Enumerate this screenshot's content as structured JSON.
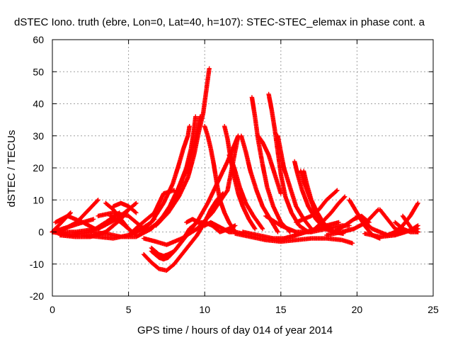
{
  "chart_data": {
    "type": "scatter",
    "title": "dSTEC Iono. truth (ebre, Lon=0, Lat=40, h=107): STEC-STEC_elemax in phase cont. a",
    "xlabel": "GPS time / hours of day 014 of year 2014",
    "ylabel": "dSTEC  / TECUs",
    "xlim": [
      0,
      25
    ],
    "ylim": [
      -20,
      60
    ],
    "xticks": [
      0,
      5,
      10,
      15,
      20,
      25
    ],
    "yticks": [
      -20,
      -10,
      0,
      10,
      20,
      30,
      40,
      50,
      60
    ],
    "grid": true,
    "marker": "+",
    "color": "#ff0000",
    "series": [
      {
        "x": [
          0.0,
          0.4,
          0.8,
          1.2
        ],
        "y": [
          0,
          2,
          4,
          6
        ]
      },
      {
        "x": [
          0.0,
          0.8,
          1.6,
          2.4,
          3.0
        ],
        "y": [
          0,
          1,
          3,
          7,
          10
        ]
      },
      {
        "x": [
          0.0,
          1.0,
          2.0,
          2.7
        ],
        "y": [
          0,
          1.5,
          3,
          4
        ]
      },
      {
        "x": [
          0.0,
          1.2,
          2.5,
          3.5,
          4.4
        ],
        "y": [
          0,
          -1,
          0,
          3,
          6
        ]
      },
      {
        "x": [
          0.2,
          1.0,
          2.0,
          2.8
        ],
        "y": [
          3,
          5,
          3,
          1
        ]
      },
      {
        "x": [
          0.5,
          1.5,
          2.5,
          3.5,
          4.5,
          5.0
        ],
        "y": [
          -1,
          -1.5,
          -1.5,
          0,
          4,
          7
        ]
      },
      {
        "x": [
          0.0,
          1.5,
          3.0,
          4.2,
          5.0,
          5.5
        ],
        "y": [
          0,
          0,
          1,
          4,
          7,
          9
        ]
      },
      {
        "x": [
          3.5,
          4.0,
          4.5,
          5.0,
          5.5
        ],
        "y": [
          9,
          7,
          4,
          1,
          -1
        ]
      },
      {
        "x": [
          3.0,
          4.0,
          5.0,
          6.0
        ],
        "y": [
          5,
          6,
          5,
          1
        ]
      },
      {
        "x": [
          2.5,
          3.5,
          4.5,
          5.5,
          6.5
        ],
        "y": [
          0,
          -0.5,
          -1.5,
          -1.5,
          1
        ]
      },
      {
        "x": [
          4.0,
          4.5,
          5.0,
          5.5
        ],
        "y": [
          8,
          9,
          8,
          6
        ]
      },
      {
        "x": [
          2.0,
          3.0,
          4.0,
          5.0,
          6.0,
          6.7
        ],
        "y": [
          -1,
          -1.5,
          -2,
          -1,
          1,
          4
        ]
      },
      {
        "x": [
          3.8,
          4.5,
          5.0
        ],
        "y": [
          5,
          3,
          1
        ]
      },
      {
        "x": [
          5.0,
          5.7,
          6.2,
          6.7,
          7.0,
          7.3,
          8.0
        ],
        "y": [
          -1,
          2,
          4,
          6,
          9,
          12,
          13
        ]
      },
      {
        "x": [
          5.5,
          6.5,
          7.3,
          7.9,
          8.3,
          8.6,
          8.9,
          9.0
        ],
        "y": [
          0,
          3,
          9,
          15,
          21,
          26,
          30,
          33
        ]
      },
      {
        "x": [
          6.0,
          7.0,
          7.7,
          8.3,
          8.8,
          9.1,
          9.3,
          9.4
        ],
        "y": [
          0,
          3,
          8,
          14,
          20,
          26,
          32,
          36
        ]
      },
      {
        "x": [
          6.5,
          7.3,
          8.0,
          8.5,
          9.0,
          9.4,
          9.7
        ],
        "y": [
          1,
          5,
          10,
          16,
          22,
          29,
          36
        ]
      },
      {
        "x": [
          6.8,
          7.6,
          8.3,
          8.9,
          9.3,
          9.6,
          9.9,
          10.1,
          10.3
        ],
        "y": [
          2,
          6,
          11,
          17,
          24,
          31,
          37,
          44,
          51
        ]
      },
      {
        "x": [
          6.0,
          6.5,
          7.0,
          7.5,
          8.0,
          8.5,
          9.0,
          9.5,
          10.0,
          10.4,
          10.8,
          11.2
        ],
        "y": [
          -7,
          -9.5,
          -11.5,
          -12,
          -10,
          -7,
          -4,
          -1,
          3,
          7,
          10,
          12
        ]
      },
      {
        "x": [
          6.5,
          7.0,
          7.3,
          7.6,
          8.0,
          8.5,
          9.0,
          9.6,
          10.2,
          10.8,
          11.5,
          12.2
        ],
        "y": [
          -6,
          -8,
          -8.5,
          -8,
          -6,
          -3,
          0,
          4,
          9,
          15,
          22,
          30
        ]
      },
      {
        "x": [
          6.0,
          6.8,
          7.5,
          8.5,
          9.5,
          10.5,
          11.5,
          12.2
        ],
        "y": [
          -2,
          -3,
          -4,
          -2,
          1,
          6,
          13,
          30
        ]
      },
      {
        "x": [
          6.5,
          7.0,
          7.3,
          7.6,
          8.0,
          8.5,
          9.0,
          9.5,
          10.0,
          10.5,
          11.0,
          11.6,
          12.0
        ],
        "y": [
          -5,
          -7,
          -7.5,
          -7,
          -6,
          -3,
          1,
          3,
          3,
          2,
          0,
          1,
          2
        ]
      },
      {
        "x": [
          8.8,
          9.2,
          9.6,
          10.0,
          10.4,
          10.8,
          11.2,
          11.6,
          12.0
        ],
        "y": [
          3,
          4,
          3,
          2,
          3,
          2,
          1,
          0,
          0
        ]
      },
      {
        "x": [
          10.0,
          10.2,
          10.4,
          10.6,
          10.8,
          11.0,
          11.3,
          11.6,
          12.0,
          12.5
        ],
        "y": [
          33,
          30,
          26,
          21,
          15,
          10,
          6,
          3,
          0,
          -0.5
        ]
      },
      {
        "x": [
          11.3,
          11.5,
          11.7,
          11.9,
          12.2,
          12.5,
          12.9,
          13.3
        ],
        "y": [
          33,
          29,
          23,
          18,
          12,
          8,
          4,
          1
        ]
      },
      {
        "x": [
          11.6,
          11.8,
          12.0,
          12.3,
          12.7,
          13.2,
          13.8
        ],
        "y": [
          24,
          22,
          19,
          14,
          9,
          5,
          1
        ]
      },
      {
        "x": [
          12.4,
          12.7,
          13.0,
          13.4,
          13.8,
          14.3,
          14.8
        ],
        "y": [
          30,
          25,
          19,
          13,
          8,
          4,
          0
        ]
      },
      {
        "x": [
          13.1,
          13.3,
          13.5,
          13.8,
          14.1,
          14.5,
          15.0,
          15.6
        ],
        "y": [
          42,
          36,
          29,
          21,
          14,
          8,
          3,
          0
        ]
      },
      {
        "x": [
          14.2,
          14.4,
          14.6,
          14.8,
          15.0,
          15.3,
          15.7,
          16.2,
          16.8
        ],
        "y": [
          43,
          38,
          32,
          25,
          18,
          11,
          6,
          2,
          0
        ]
      },
      {
        "x": [
          13.5,
          13.8,
          14.2,
          14.6,
          15.0
        ],
        "y": [
          30,
          28,
          24,
          18,
          12
        ]
      },
      {
        "x": [
          14.8,
          15.0,
          15.2,
          15.6,
          16.0,
          16.5,
          17.0
        ],
        "y": [
          30,
          25,
          20,
          14,
          8,
          4,
          1
        ]
      },
      {
        "x": [
          15.9,
          16.1,
          16.4,
          16.8,
          17.3,
          17.9,
          18.5
        ],
        "y": [
          22,
          18,
          13,
          8,
          4,
          1,
          0
        ]
      },
      {
        "x": [
          16.3,
          16.5,
          16.8,
          17.2,
          17.7,
          18.3
        ],
        "y": [
          19,
          16,
          12,
          7,
          3,
          1
        ]
      },
      {
        "x": [
          16.5,
          16.7,
          17.0,
          17.4,
          17.9,
          18.5,
          19.1
        ],
        "y": [
          19,
          15,
          10,
          6,
          2,
          0,
          -0.5
        ]
      },
      {
        "x": [
          12.0,
          13.0,
          14.0,
          15.0,
          16.0,
          17.0,
          18.0,
          19.0,
          19.7
        ],
        "y": [
          -0.5,
          -1.5,
          -2.5,
          -3,
          -2.5,
          -2,
          -2,
          -2.5,
          -3.5
        ]
      },
      {
        "x": [
          12.5,
          13.5,
          14.5,
          15.2,
          16.0,
          17.0,
          18.0,
          18.8
        ],
        "y": [
          0,
          -1,
          -2,
          -2,
          -1,
          0.5,
          2,
          3
        ]
      },
      {
        "x": [
          14.0,
          15.0,
          16.0,
          17.0,
          18.0,
          19.0,
          19.5
        ],
        "y": [
          5,
          2,
          0,
          0,
          1,
          2,
          2
        ]
      },
      {
        "x": [
          16.0,
          17.0,
          17.5,
          18.0,
          18.7
        ],
        "y": [
          3,
          5,
          7,
          10,
          13
        ]
      },
      {
        "x": [
          17.0,
          17.7,
          18.3,
          18.8,
          19.2
        ],
        "y": [
          0,
          3,
          6,
          9,
          11
        ]
      },
      {
        "x": [
          18.5,
          19.2,
          19.8,
          20.3,
          20.8
        ],
        "y": [
          0,
          2,
          4,
          5,
          3
        ]
      },
      {
        "x": [
          18.0,
          19.0,
          19.8,
          20.6,
          21.4
        ],
        "y": [
          -1,
          0,
          1,
          3,
          7
        ]
      },
      {
        "x": [
          19.5,
          20.0,
          20.5,
          21.0,
          21.5
        ],
        "y": [
          10,
          6,
          2,
          -1,
          -2
        ]
      },
      {
        "x": [
          20.0,
          21.0,
          22.0,
          23.0,
          24.0
        ],
        "y": [
          5,
          1,
          -1,
          0,
          1
        ]
      },
      {
        "x": [
          20.5,
          21.5,
          22.5,
          23.5,
          24.0
        ],
        "y": [
          -0.5,
          -1.5,
          -1,
          0.5,
          2
        ]
      },
      {
        "x": [
          21.5,
          22.0,
          22.5,
          23.0
        ],
        "y": [
          7,
          4,
          1,
          0
        ]
      },
      {
        "x": [
          22.0,
          22.5,
          23.0,
          23.5,
          24.0
        ],
        "y": [
          -1,
          0,
          2,
          5,
          9
        ]
      },
      {
        "x": [
          22.5,
          23.0,
          23.5,
          24.0
        ],
        "y": [
          3,
          1,
          0,
          0
        ]
      },
      {
        "x": [
          23.0,
          23.3,
          23.6,
          24.0
        ],
        "y": [
          5,
          3,
          1,
          0
        ]
      }
    ]
  }
}
